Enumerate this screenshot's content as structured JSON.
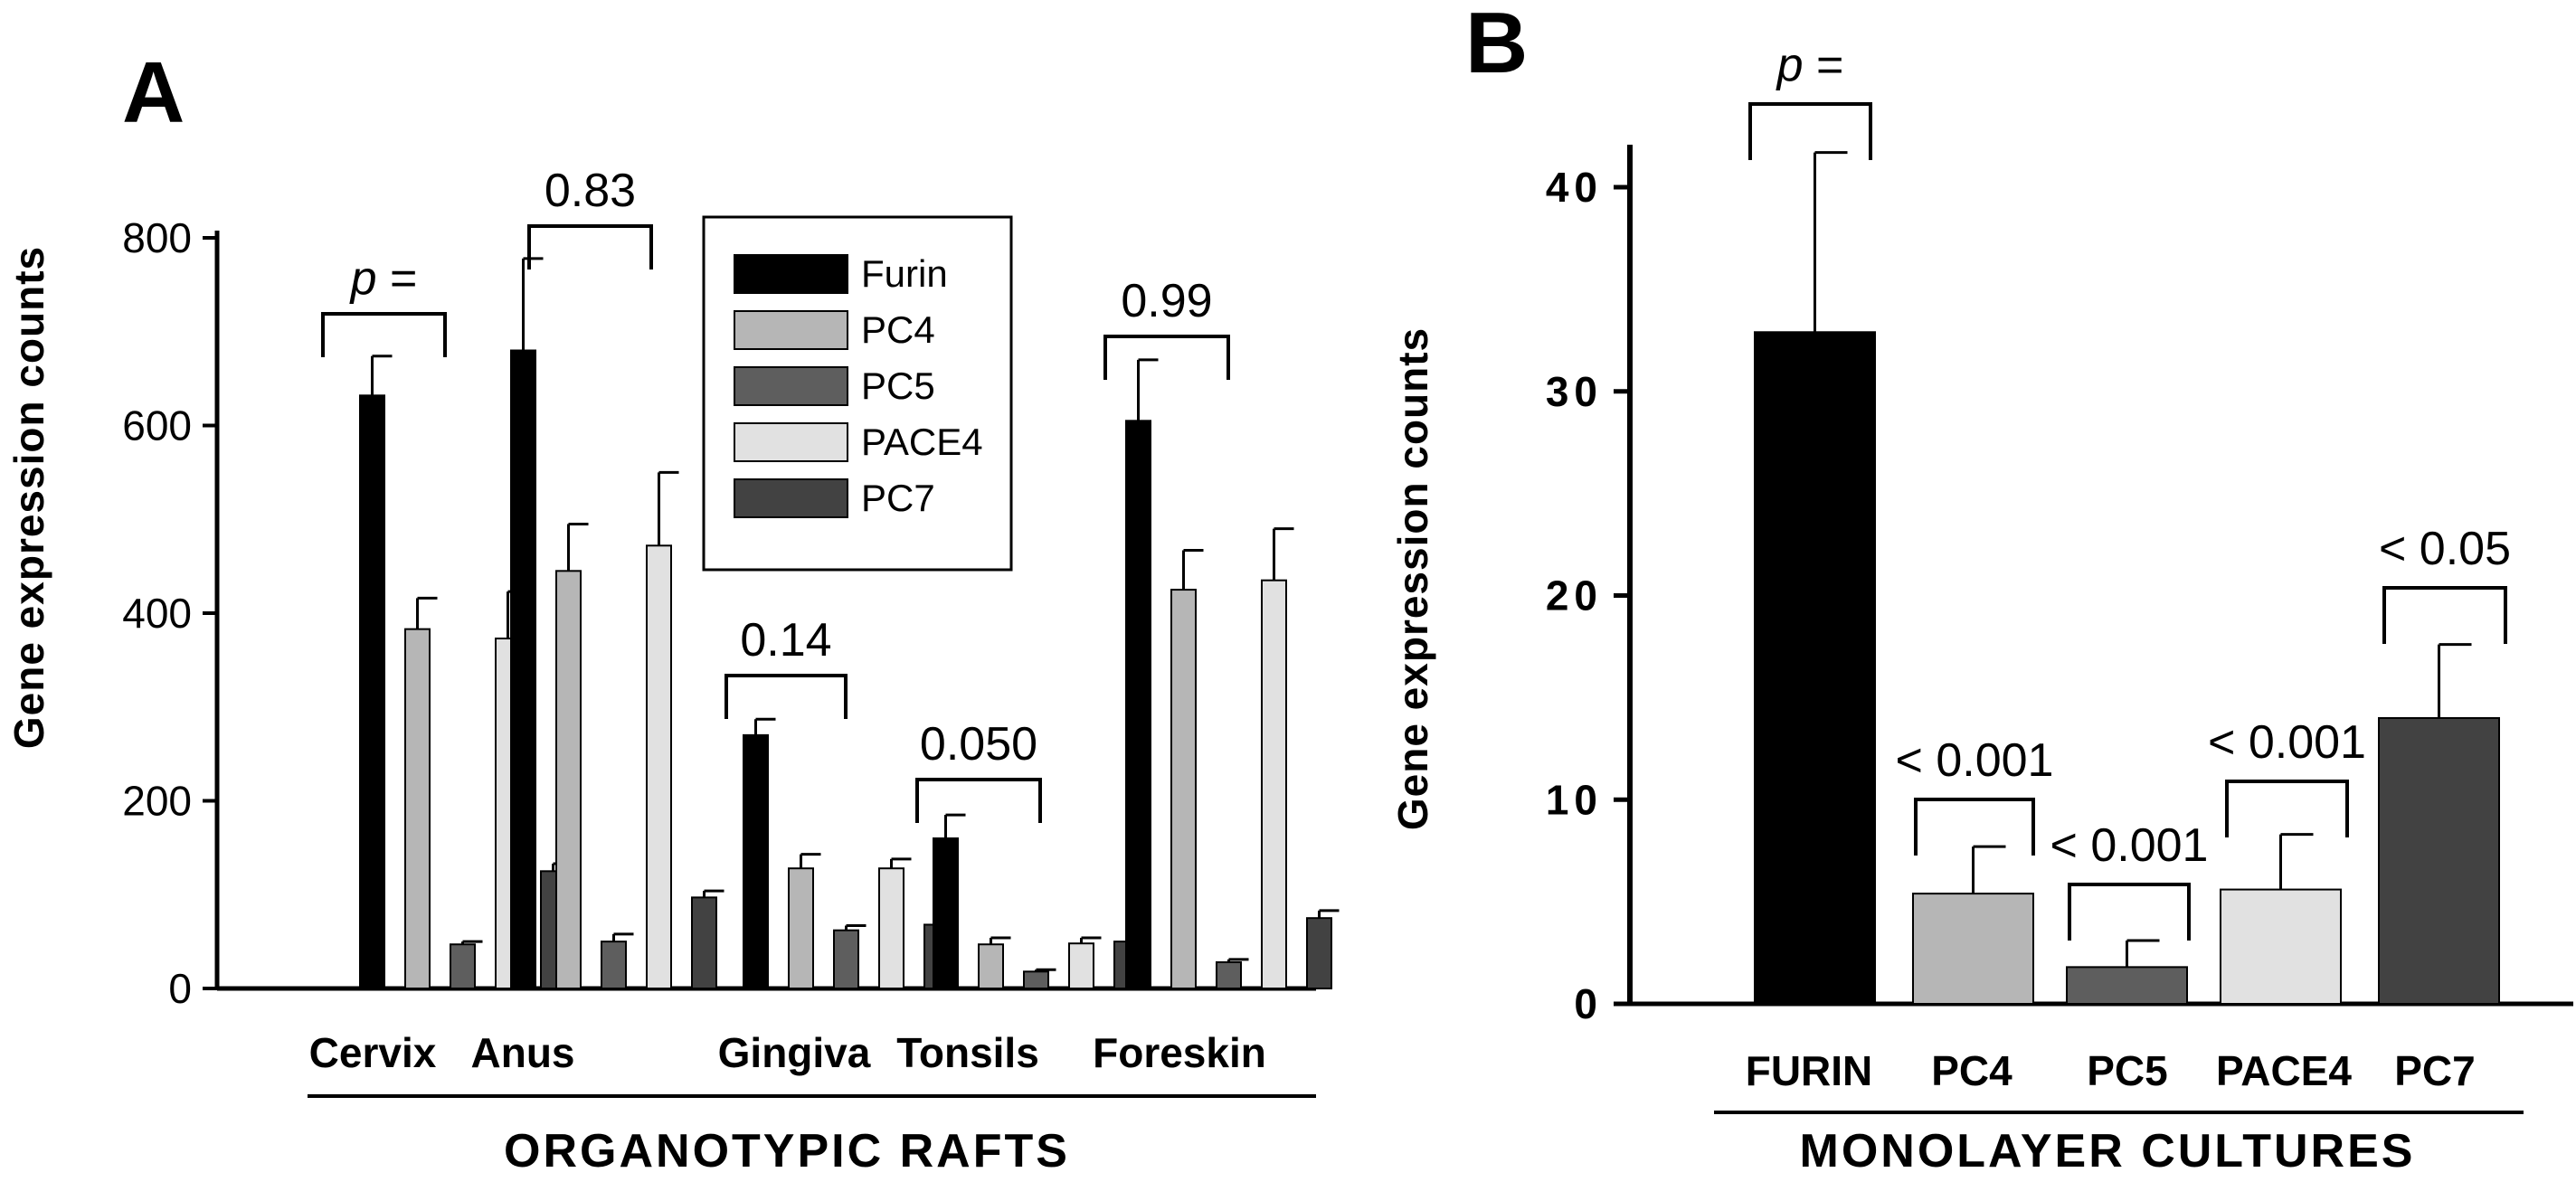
{
  "panels": {
    "a": {
      "letter": "A"
    },
    "b": {
      "letter": "B"
    }
  },
  "colors": {
    "Furin": "#000000",
    "PC4": "#b6b6b6",
    "PC5": "#5e5e5e",
    "PACE4": "#e1e1e1",
    "PC7": "#424242",
    "axis": "#000000"
  },
  "chart_data": [
    {
      "type": "bar",
      "panel": "A",
      "ylabel": "Gene expression counts",
      "group_label": "ORGANOTYPIC RAFTS",
      "categories": [
        "Cervix",
        "Anus",
        "Gingiva",
        "Tonsils",
        "Foreskin"
      ],
      "ylim": [
        0,
        800
      ],
      "yticks": [
        "0",
        "200",
        "400",
        "600",
        "800"
      ],
      "legend_position": "top-center",
      "series": [
        {
          "name": "Furin",
          "values": [
            632,
            680,
            270,
            160,
            605
          ],
          "errors": [
            42,
            98,
            17,
            25,
            65
          ]
        },
        {
          "name": "PC4",
          "values": [
            383,
            445,
            128,
            47,
            425
          ],
          "errors": [
            33,
            50,
            15,
            7,
            42
          ]
        },
        {
          "name": "PC5",
          "values": [
            47,
            50,
            62,
            18,
            28
          ],
          "errors": [
            3,
            8,
            5,
            2,
            3
          ]
        },
        {
          "name": "PACE4",
          "values": [
            373,
            472,
            128,
            48,
            435
          ],
          "errors": [
            50,
            78,
            10,
            6,
            55
          ]
        },
        {
          "name": "PC7",
          "values": [
            125,
            97,
            68,
            50,
            75
          ],
          "errors": [
            8,
            7,
            4,
            5,
            8
          ]
        }
      ],
      "annotations": [
        "p =",
        "0.83",
        "0.14",
        "0.050",
        "0.99"
      ]
    },
    {
      "type": "bar",
      "panel": "B",
      "ylabel": "Gene expression counts",
      "group_label": "MONOLAYER CULTURES",
      "categories": [
        "FURIN",
        "PC4",
        "PC5",
        "PACE4",
        "PC7"
      ],
      "ylim": [
        0,
        40
      ],
      "yticks": [
        "0",
        "10",
        "20",
        "30",
        "40"
      ],
      "values": [
        32.9,
        5.4,
        1.8,
        5.6,
        14.0
      ],
      "errors": [
        8.8,
        2.3,
        1.3,
        2.7,
        3.6
      ],
      "annotations": [
        "p =",
        "< 0.001",
        "< 0.001",
        "< 0.001",
        "< 0.05"
      ]
    }
  ]
}
